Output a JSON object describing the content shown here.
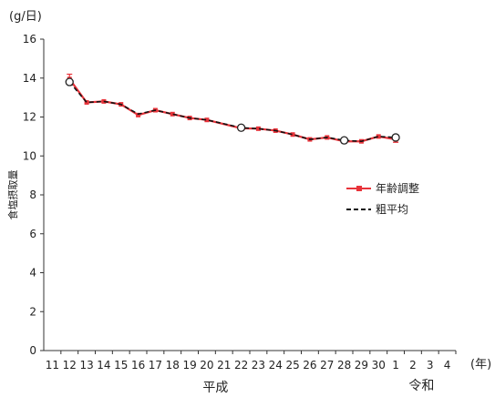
{
  "chart_data": {
    "type": "line",
    "title": "",
    "y_unit": "(g/日)",
    "x_unit": "(年)",
    "ylabel": "食塩摂取量",
    "ylim": [
      0,
      16
    ],
    "yticks": [
      0,
      2,
      4,
      6,
      8,
      10,
      12,
      14,
      16
    ],
    "x_ticks": [
      "11",
      "12",
      "13",
      "14",
      "15",
      "16",
      "17",
      "18",
      "19",
      "20",
      "21",
      "22",
      "23",
      "24",
      "25",
      "26",
      "27",
      "28",
      "29",
      "30",
      "1",
      "2",
      "3",
      "4"
    ],
    "eras": [
      {
        "label": "平成",
        "under_ticks": [
          "11",
          "30"
        ]
      },
      {
        "label": "令和",
        "under_ticks": [
          "1",
          "4"
        ]
      }
    ],
    "grid": false,
    "legend_position": "right-middle",
    "series": [
      {
        "name": "年齢調整",
        "color": "#e8333a",
        "style": "solid-square-marker",
        "x": [
          "12",
          "13",
          "14",
          "15",
          "16",
          "17",
          "18",
          "19",
          "20",
          "22",
          "23",
          "24",
          "25",
          "26",
          "27",
          "28",
          "29",
          "30",
          "1"
        ],
        "values": [
          13.95,
          12.75,
          12.8,
          12.65,
          12.1,
          12.35,
          12.15,
          11.95,
          11.85,
          11.42,
          11.4,
          11.3,
          11.1,
          10.85,
          10.95,
          10.75,
          10.75,
          11.0,
          10.85
        ],
        "error_bars": [
          0.25,
          null,
          null,
          null,
          null,
          null,
          null,
          null,
          null,
          0.12,
          null,
          null,
          null,
          null,
          null,
          0.1,
          null,
          null,
          0.15
        ]
      },
      {
        "name": "粗平均",
        "color": "#111111",
        "style": "dashed",
        "x": [
          "12",
          "13",
          "14",
          "15",
          "16",
          "17",
          "18",
          "19",
          "20",
          "22",
          "23",
          "24",
          "25",
          "26",
          "27",
          "28",
          "29",
          "30",
          "1"
        ],
        "values": [
          13.8,
          12.75,
          12.8,
          12.65,
          12.15,
          12.35,
          12.15,
          11.95,
          11.85,
          11.45,
          11.4,
          11.3,
          11.1,
          10.85,
          10.95,
          10.8,
          10.75,
          11.0,
          10.95
        ],
        "open_markers_at": [
          "12",
          "22",
          "28",
          "1"
        ]
      }
    ]
  }
}
